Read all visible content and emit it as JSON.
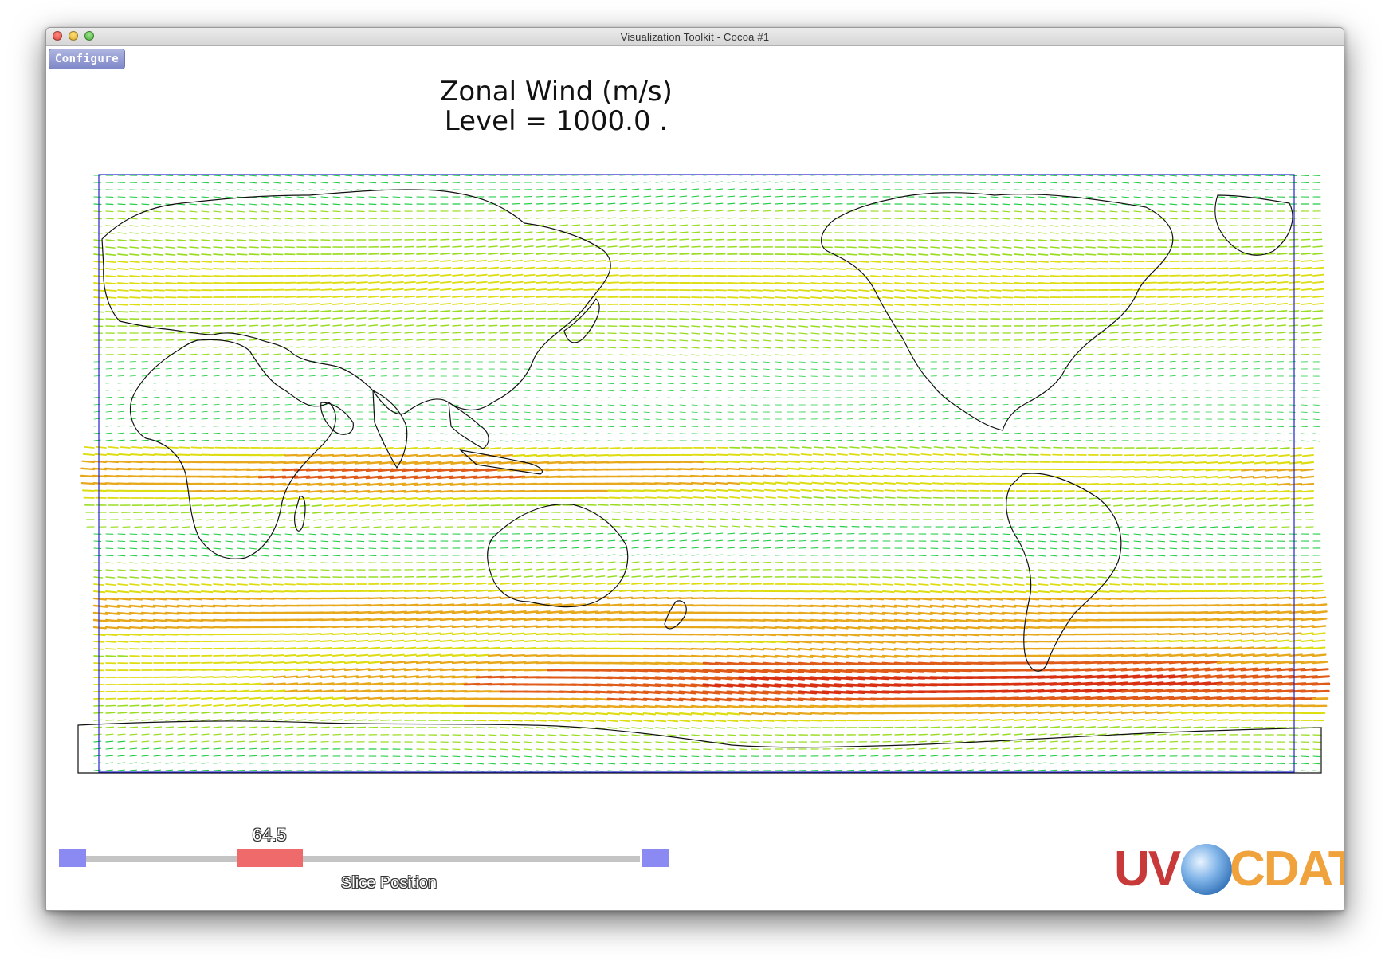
{
  "window": {
    "title": "Visualization Toolkit - Cocoa #1"
  },
  "toolbar": {
    "configure_label": "Configure"
  },
  "plot": {
    "title_line1": "Zonal Wind (m/s)",
    "title_line2": "Level = 1000.0 .",
    "frame_color": "#2222cc",
    "arrow_colors": [
      "#22cc44",
      "#99dd22",
      "#dddd11",
      "#e8a81c",
      "#e05a18",
      "#d83010"
    ]
  },
  "slider": {
    "value": "64.5",
    "label": "Slice Position",
    "fraction": 0.31
  },
  "logo": {
    "text_u": "UV",
    "text_rest": "CDAT",
    "globe_icon": "globe-icon"
  }
}
